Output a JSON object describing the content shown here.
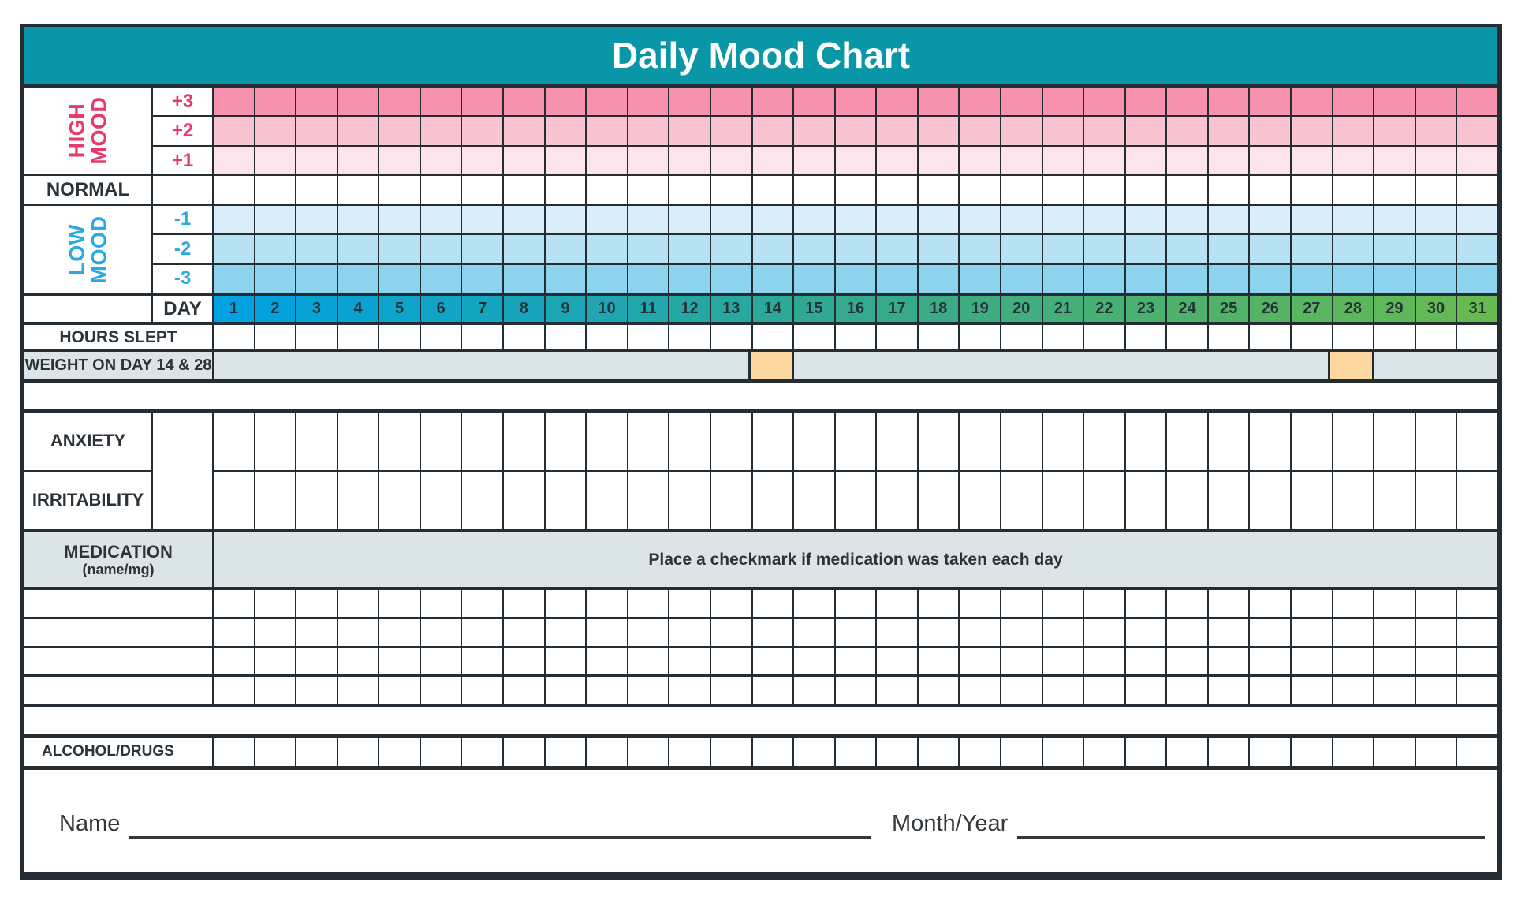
{
  "title": "Daily Mood Chart",
  "days": [
    "1",
    "2",
    "3",
    "4",
    "5",
    "6",
    "7",
    "8",
    "9",
    "10",
    "11",
    "12",
    "13",
    "14",
    "15",
    "16",
    "17",
    "18",
    "19",
    "20",
    "21",
    "22",
    "23",
    "24",
    "25",
    "26",
    "27",
    "28",
    "29",
    "30",
    "31"
  ],
  "mood": {
    "high_label": [
      "HIGH",
      "MOOD"
    ],
    "high_scores": [
      "+3",
      "+2",
      "+1"
    ],
    "normal_label": "NORMAL",
    "low_label": [
      "LOW",
      "MOOD"
    ],
    "low_scores": [
      "-1",
      "-2",
      "-3"
    ],
    "day_label": "DAY"
  },
  "tracking": {
    "hours_slept_label": "HOURS SLEPT",
    "weight_label": "WEIGHT ON DAY 14 & 28",
    "weight_highlight_days": [
      "14",
      "28"
    ]
  },
  "symptoms": {
    "anxiety_label": "ANXIETY",
    "irritability_label": "IRRITABILITY"
  },
  "medication": {
    "label": "MEDICATION",
    "sublabel": "(name/mg)",
    "instruction": "Place a checkmark if medication was taken each day",
    "blank_rows": 4
  },
  "substances": {
    "alcohol_label": "ALCOHOL/DRUGS"
  },
  "footer": {
    "name_label": "Name",
    "month_year_label": "Month/Year"
  },
  "colors": {
    "header_teal": "#0997a7",
    "line_dark": "#232d33",
    "high_text_pink": "#e8396b",
    "low_text_blue": "#2aa9e1",
    "plus3_bg": "#f692ad",
    "plus2_bg": "#fac3d2",
    "plus1_bg": "#fde4ea",
    "minus1_bg": "#d9eefa",
    "minus2_bg": "#b7e2f4",
    "minus3_bg": "#8ed3ee",
    "gray_bg": "#dbe5e7",
    "weight_highlight_orange": "#fcd8a0",
    "day_gradient": [
      "#00a2e2",
      "#33a98e",
      "#66ba4f"
    ]
  }
}
